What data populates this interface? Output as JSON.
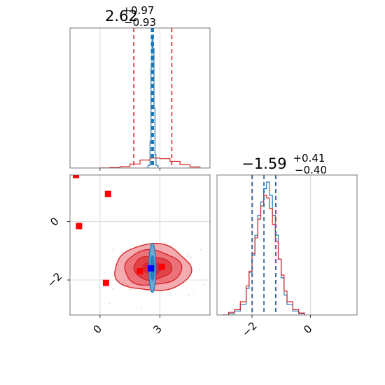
{
  "chart_data": [
    {
      "type": "histogram",
      "panel": "top-left marginal",
      "title": {
        "main": "2.62",
        "sup": "+0.97",
        "sub": "−0.93"
      },
      "xlim": [
        -1.5,
        5.5
      ],
      "x_ticks": [
        0,
        3
      ],
      "grid": true,
      "series": [
        {
          "color": "#1f77b4",
          "style": "steps",
          "x": [
            2.3,
            2.4,
            2.5,
            2.55,
            2.6,
            2.65,
            2.7,
            2.75,
            2.8,
            2.9
          ],
          "values": [
            0,
            0.02,
            0.2,
            0.75,
            1.0,
            0.9,
            0.45,
            0.1,
            0.02,
            0
          ]
        },
        {
          "color": "#d62728",
          "style": "steps",
          "x": [
            0.0,
            0.5,
            1.0,
            1.5,
            2.0,
            2.5,
            3.0,
            3.5,
            4.0,
            4.5,
            5.0
          ],
          "values": [
            0,
            0.003,
            0.01,
            0.03,
            0.06,
            0.075,
            0.07,
            0.05,
            0.025,
            0.008,
            0
          ]
        }
      ],
      "quantile_lines": [
        {
          "color": "#d62728",
          "style": "dashed",
          "x": [
            1.69,
            2.62,
            3.59
          ]
        },
        {
          "color": "#1f77b4",
          "style": "dashed",
          "x": [
            2.57,
            2.62,
            2.67
          ]
        }
      ]
    },
    {
      "type": "scatter",
      "panel": "bottom-left 2D",
      "xlim": [
        -1.5,
        5.5
      ],
      "ylim": [
        -3.2,
        1.6
      ],
      "x_ticks": [
        0,
        3
      ],
      "y_ticks": [
        -2,
        0
      ],
      "grid": true,
      "red_contours": {
        "center": [
          2.62,
          -1.59
        ],
        "sigma": [
          0.95,
          0.4
        ],
        "levels": [
          0.5,
          1.0,
          1.5,
          2.0
        ]
      },
      "blue_contours": {
        "center": [
          2.62,
          -1.59
        ],
        "sigma": [
          0.09,
          0.42
        ],
        "levels": [
          1.0,
          2.0
        ]
      },
      "points": [
        {
          "x": -1.2,
          "y": 1.6,
          "color": "#ff0000"
        },
        {
          "x": 0.4,
          "y": 0.95,
          "color": "#ff0000"
        },
        {
          "x": -1.05,
          "y": -0.15,
          "color": "#ff0000"
        },
        {
          "x": 0.3,
          "y": -2.1,
          "color": "#ff0000"
        },
        {
          "x": 2.0,
          "y": -1.7,
          "color": "#ff0000"
        },
        {
          "x": 3.1,
          "y": -1.55,
          "color": "#ff0000"
        },
        {
          "x": 2.55,
          "y": -1.6,
          "color": "#0000ff"
        }
      ]
    },
    {
      "type": "histogram",
      "panel": "bottom-right marginal",
      "title": {
        "main": "−1.59",
        "sup": "+0.41",
        "sub": "−0.40"
      },
      "xlim": [
        -3.2,
        1.6
      ],
      "x_ticks": [
        -2,
        0
      ],
      "grid": true,
      "series": [
        {
          "color": "#1f77b4",
          "style": "steps",
          "x": [
            -3.0,
            -2.8,
            -2.6,
            -2.4,
            -2.2,
            -2.1,
            -2.0,
            -1.9,
            -1.8,
            -1.7,
            -1.6,
            -1.5,
            -1.4,
            -1.3,
            -1.2,
            -1.1,
            -1.0,
            -0.9,
            -0.8,
            -0.6,
            -0.4,
            -0.2
          ],
          "values": [
            0,
            0.01,
            0.03,
            0.08,
            0.2,
            0.32,
            0.45,
            0.6,
            0.75,
            0.85,
            0.95,
            1.0,
            0.9,
            0.75,
            0.6,
            0.42,
            0.28,
            0.15,
            0.08,
            0.03,
            0.01,
            0
          ]
        },
        {
          "color": "#d62728",
          "style": "steps",
          "x": [
            -3.0,
            -2.8,
            -2.6,
            -2.4,
            -2.2,
            -2.1,
            -2.0,
            -1.9,
            -1.8,
            -1.7,
            -1.6,
            -1.5,
            -1.4,
            -1.3,
            -1.2,
            -1.1,
            -1.0,
            -0.9,
            -0.8,
            -0.6,
            -0.4,
            -0.2
          ],
          "values": [
            0,
            0.02,
            0.04,
            0.1,
            0.22,
            0.33,
            0.46,
            0.58,
            0.72,
            0.82,
            0.9,
            0.88,
            0.8,
            0.68,
            0.55,
            0.42,
            0.3,
            0.18,
            0.1,
            0.04,
            0.015,
            0
          ]
        }
      ],
      "quantile_lines": [
        {
          "color": "#d62728",
          "style": "dashed",
          "x": [
            -1.99,
            -1.59,
            -1.18
          ]
        },
        {
          "color": "#1f77b4",
          "style": "dashed",
          "x": [
            -2.0,
            -1.59,
            -1.19
          ]
        }
      ]
    }
  ]
}
